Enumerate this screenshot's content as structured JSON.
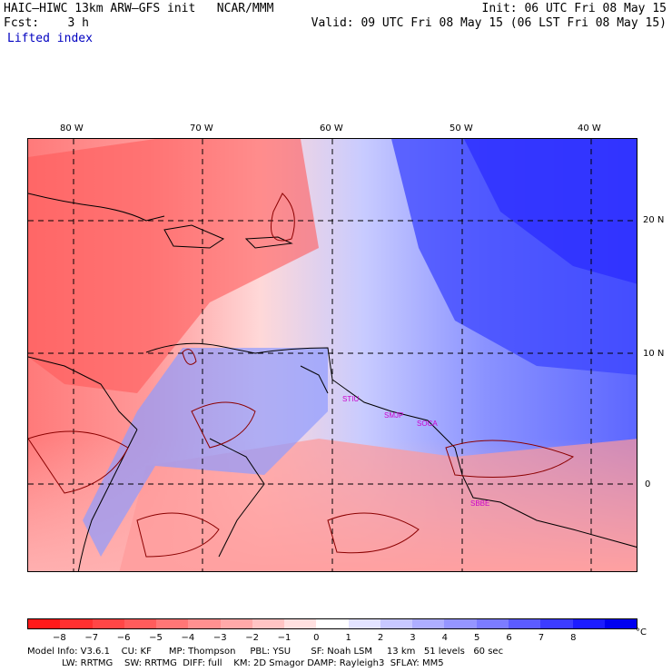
{
  "header": {
    "title": "HAIC–HIWC 13km ARW–GFS init   NCAR/MMM",
    "init": "Init: 06 UTC Fri 08 May 15",
    "fcst": "Fcst:    3 h",
    "valid": "Valid: 09 UTC Fri 08 May 15 (06 LST Fri 08 May 15)",
    "field": "Lifted index"
  },
  "map": {
    "lon_labels": [
      "80 W",
      "70 W",
      "60 W",
      "50 W",
      "40 W"
    ],
    "lat_labels": [
      "20 N",
      "10 N",
      "0"
    ],
    "station_labels": [
      "STIU",
      "SMJP",
      "SOCA",
      "SBBE"
    ],
    "grid_style": "dashed black lines every 10 degrees",
    "colors": {
      "land_outline": "#000000",
      "contour": "#8b0000",
      "station": "#cc00cc"
    }
  },
  "colorbar": {
    "labels": [
      "−8",
      "−7",
      "−6",
      "−5",
      "−4",
      "−3",
      "−2",
      "−1",
      "0",
      "1",
      "2",
      "3",
      "4",
      "5",
      "6",
      "7",
      "8"
    ],
    "unit": "°C",
    "colors": [
      "#ff1a1a",
      "#ff3030",
      "#ff4646",
      "#ff5c5c",
      "#ff7676",
      "#ff9090",
      "#ffa9a9",
      "#ffc4c4",
      "#ffe0e0",
      "#ffffff",
      "#e3e3ff",
      "#c8c8ff",
      "#aeaeff",
      "#9595ff",
      "#7c7cff",
      "#5c5cff",
      "#3c3cff",
      "#1c1cff",
      "#0000f0"
    ]
  },
  "footer": {
    "line1": "Model Info: V3.6.1    CU: KF      MP: Thompson     PBL: YSU       SF: Noah LSM     13 km   51 levels   60 sec",
    "line2": "            LW: RRTMG    SW: RRTMG  DIFF: full    KM: 2D Smagor DAMP: Rayleigh3  SFLAY: MM5"
  }
}
